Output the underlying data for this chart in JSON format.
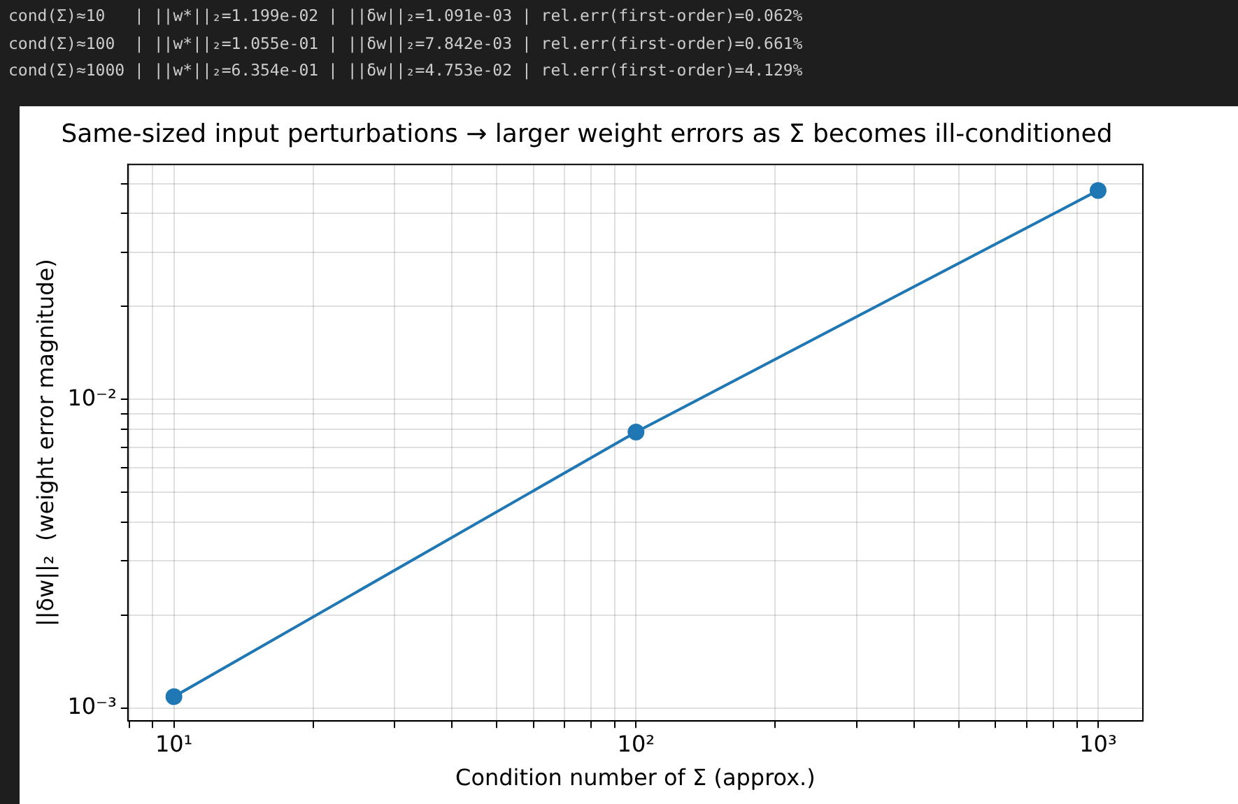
{
  "chart_data": {
    "type": "line",
    "title": "Same-sized input perturbations → larger weight errors as Σ becomes ill-conditioned",
    "xlabel": "Condition number of Σ (approx.)",
    "ylabel": "||δw||₂  (weight error magnitude)",
    "annotations": [
      "cond(Σ)≈10   | ||w*||₂=1.199e-02 | ||δw||₂=1.091e-03 | rel.err(first-order)=0.062%",
      "cond(Σ)≈100  | ||w*||₂=1.055e-01 | ||δw||₂=7.842e-03 | rel.err(first-order)=0.661%",
      "cond(Σ)≈1000 | ||w*||₂=6.354e-01 | ||δw||₂=4.753e-02 | rel.err(first-order)=4.129%"
    ],
    "x": [
      10,
      100,
      1000
    ],
    "series": [
      {
        "color": "#1f77b4",
        "values": [
          0.001091,
          0.007842,
          0.04753
        ]
      }
    ],
    "log": "xy",
    "xlim": [
      7.95,
      1250
    ],
    "ylim": [
      0.00091,
      0.0577
    ],
    "xticks": [
      {
        "value": 8,
        "label": null
      },
      {
        "value": 9,
        "label": null
      },
      {
        "value": 10,
        "label": "10¹"
      },
      {
        "value": 20,
        "label": null
      },
      {
        "value": 30,
        "label": null
      },
      {
        "value": 40,
        "label": null
      },
      {
        "value": 50,
        "label": null
      },
      {
        "value": 60,
        "label": null
      },
      {
        "value": 70,
        "label": null
      },
      {
        "value": 80,
        "label": null
      },
      {
        "value": 90,
        "label": null
      },
      {
        "value": 100,
        "label": "10²"
      },
      {
        "value": 200,
        "label": null
      },
      {
        "value": 300,
        "label": null
      },
      {
        "value": 400,
        "label": null
      },
      {
        "value": 500,
        "label": null
      },
      {
        "value": 600,
        "label": null
      },
      {
        "value": 700,
        "label": null
      },
      {
        "value": 800,
        "label": null
      },
      {
        "value": 900,
        "label": null
      },
      {
        "value": 1000,
        "label": "10³"
      }
    ],
    "yticks": [
      {
        "value": 0.001,
        "label": "10⁻³"
      },
      {
        "value": 0.002,
        "label": null
      },
      {
        "value": 0.003,
        "label": null
      },
      {
        "value": 0.004,
        "label": null
      },
      {
        "value": 0.005,
        "label": null
      },
      {
        "value": 0.006,
        "label": null
      },
      {
        "value": 0.007,
        "label": null
      },
      {
        "value": 0.008,
        "label": null
      },
      {
        "value": 0.009,
        "label": null
      },
      {
        "value": 0.01,
        "label": "10⁻²"
      },
      {
        "value": 0.02,
        "label": null
      },
      {
        "value": 0.03,
        "label": null
      },
      {
        "value": 0.04,
        "label": null
      },
      {
        "value": 0.05,
        "label": null
      }
    ],
    "grid": true,
    "legend": false,
    "marker": "circle",
    "line_style": "solid"
  }
}
